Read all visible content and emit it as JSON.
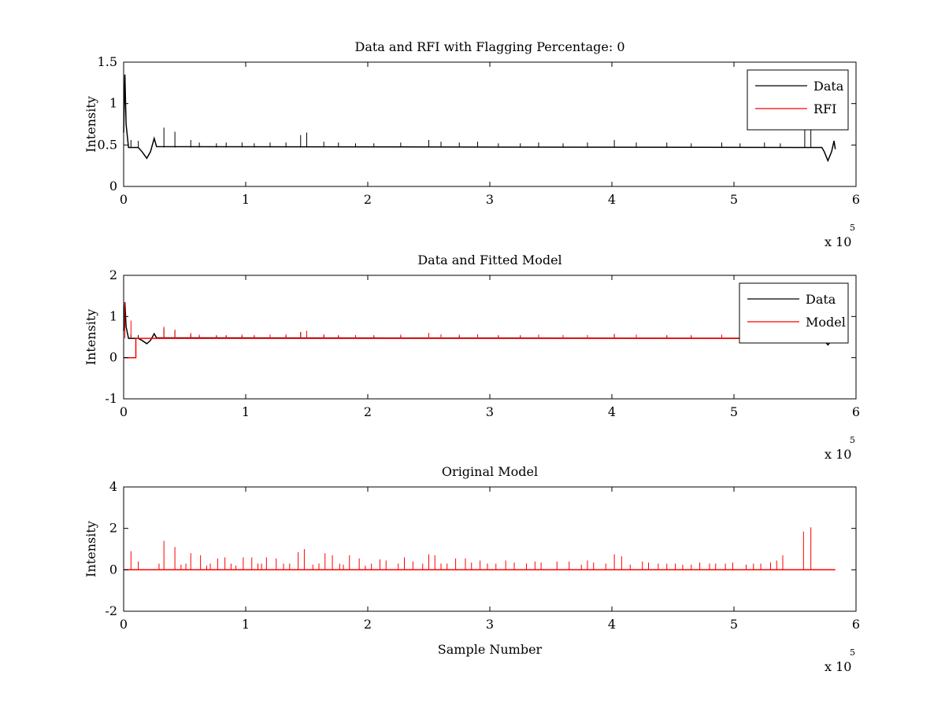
{
  "figure_colors": {
    "data": "#000000",
    "rfi": "#ff0000",
    "model": "#ff0000",
    "background": "#ffffff"
  },
  "chart_data": [
    {
      "type": "line",
      "title": "Data and RFI with Flagging Percentage: 0",
      "xlabel": "",
      "ylabel": "Intensity",
      "xlim": [
        0,
        6
      ],
      "ylim": [
        0,
        1.5
      ],
      "x_ticks": [
        0,
        1,
        2,
        3,
        4,
        5,
        6
      ],
      "y_ticks": [
        0,
        0.5,
        1,
        1.5
      ],
      "x_tick_labels": [
        "0",
        "1",
        "2",
        "3",
        "4",
        "5",
        "6"
      ],
      "y_tick_labels": [
        "0",
        "0.5",
        "1",
        "1.5"
      ],
      "x_multiplier": {
        "base": "x 10",
        "exponent": "5"
      },
      "legend": {
        "position": "top-right",
        "entries": [
          {
            "label": "Data",
            "color": "#000000"
          },
          {
            "label": "RFI",
            "color": "#ff0000"
          }
        ]
      },
      "series": [
        {
          "name": "Data",
          "color": "#000000",
          "baseline": 0.47,
          "points": [
            [
              0,
              0.65
            ],
            [
              0.01,
              1.35
            ],
            [
              0.02,
              0.75
            ],
            [
              0.04,
              0.47
            ],
            [
              0.12,
              0.47
            ],
            [
              0.15,
              0.42
            ],
            [
              0.19,
              0.34
            ],
            [
              0.22,
              0.42
            ],
            [
              0.25,
              0.58
            ],
            [
              0.27,
              0.48
            ],
            [
              5.72,
              0.47
            ],
            [
              5.74,
              0.42
            ],
            [
              5.77,
              0.31
            ],
            [
              5.8,
              0.42
            ],
            [
              5.82,
              0.55
            ],
            [
              5.83,
              0.45
            ]
          ],
          "spikes": [
            [
              0.06,
              0.56
            ],
            [
              0.12,
              0.55
            ],
            [
              0.33,
              0.71
            ],
            [
              0.42,
              0.66
            ],
            [
              0.55,
              0.56
            ],
            [
              0.62,
              0.53
            ],
            [
              0.76,
              0.52
            ],
            [
              0.84,
              0.53
            ],
            [
              0.97,
              0.53
            ],
            [
              1.07,
              0.52
            ],
            [
              1.2,
              0.53
            ],
            [
              1.33,
              0.53
            ],
            [
              1.45,
              0.62
            ],
            [
              1.5,
              0.65
            ],
            [
              1.64,
              0.54
            ],
            [
              1.76,
              0.53
            ],
            [
              1.9,
              0.52
            ],
            [
              2.05,
              0.52
            ],
            [
              2.27,
              0.53
            ],
            [
              2.5,
              0.56
            ],
            [
              2.6,
              0.54
            ],
            [
              2.75,
              0.53
            ],
            [
              2.9,
              0.54
            ],
            [
              3.07,
              0.52
            ],
            [
              3.25,
              0.52
            ],
            [
              3.4,
              0.53
            ],
            [
              3.6,
              0.52
            ],
            [
              3.8,
              0.53
            ],
            [
              4.02,
              0.56
            ],
            [
              4.2,
              0.53
            ],
            [
              4.45,
              0.53
            ],
            [
              4.65,
              0.52
            ],
            [
              4.9,
              0.53
            ],
            [
              5.05,
              0.52
            ],
            [
              5.25,
              0.53
            ],
            [
              5.38,
              0.52
            ],
            [
              5.58,
              0.77
            ],
            [
              5.63,
              0.77
            ]
          ]
        },
        {
          "name": "RFI",
          "color": "#ff0000",
          "points": []
        }
      ]
    },
    {
      "type": "line",
      "title": "Data and Fitted Model",
      "xlabel": "",
      "ylabel": "Intensity",
      "xlim": [
        0,
        6
      ],
      "ylim": [
        -1,
        2
      ],
      "x_ticks": [
        0,
        1,
        2,
        3,
        4,
        5,
        6
      ],
      "y_ticks": [
        -1,
        0,
        1,
        2
      ],
      "x_tick_labels": [
        "0",
        "1",
        "2",
        "3",
        "4",
        "5",
        "6"
      ],
      "y_tick_labels": [
        "-1",
        "0",
        "1",
        "2"
      ],
      "x_multiplier": {
        "base": "x 10",
        "exponent": "5"
      },
      "legend": {
        "position": "top-right",
        "entries": [
          {
            "label": "Data",
            "color": "#000000"
          },
          {
            "label": "Model",
            "color": "#ff0000"
          }
        ]
      },
      "series": [
        {
          "name": "Data",
          "color": "#000000",
          "baseline": 0.47,
          "points": [
            [
              0,
              0.65
            ],
            [
              0.01,
              1.35
            ],
            [
              0.02,
              0.75
            ],
            [
              0.04,
              0.47
            ],
            [
              0.12,
              0.47
            ],
            [
              0.15,
              0.42
            ],
            [
              0.19,
              0.34
            ],
            [
              0.22,
              0.42
            ],
            [
              0.25,
              0.58
            ],
            [
              0.27,
              0.48
            ],
            [
              5.72,
              0.47
            ],
            [
              5.74,
              0.42
            ],
            [
              5.77,
              0.31
            ],
            [
              5.8,
              0.42
            ],
            [
              5.82,
              0.55
            ],
            [
              5.83,
              0.45
            ]
          ],
          "spikes": [
            [
              0.06,
              0.56
            ],
            [
              0.12,
              0.55
            ],
            [
              0.33,
              0.71
            ],
            [
              0.42,
              0.66
            ],
            [
              0.55,
              0.56
            ],
            [
              0.62,
              0.53
            ],
            [
              0.76,
              0.52
            ],
            [
              0.84,
              0.53
            ],
            [
              0.97,
              0.53
            ],
            [
              1.07,
              0.52
            ],
            [
              1.2,
              0.53
            ],
            [
              1.33,
              0.53
            ],
            [
              1.45,
              0.62
            ],
            [
              1.5,
              0.65
            ],
            [
              1.64,
              0.54
            ],
            [
              1.76,
              0.53
            ],
            [
              1.9,
              0.52
            ],
            [
              2.05,
              0.52
            ],
            [
              2.27,
              0.53
            ],
            [
              2.5,
              0.56
            ],
            [
              2.6,
              0.54
            ],
            [
              2.75,
              0.53
            ],
            [
              2.9,
              0.54
            ],
            [
              3.07,
              0.52
            ],
            [
              3.25,
              0.52
            ],
            [
              3.4,
              0.53
            ],
            [
              3.6,
              0.52
            ],
            [
              3.8,
              0.53
            ],
            [
              4.02,
              0.56
            ],
            [
              4.2,
              0.53
            ],
            [
              4.45,
              0.53
            ],
            [
              4.65,
              0.52
            ],
            [
              4.9,
              0.53
            ],
            [
              5.05,
              0.52
            ],
            [
              5.25,
              0.53
            ],
            [
              5.38,
              0.52
            ],
            [
              5.58,
              0.77
            ],
            [
              5.63,
              0.77
            ]
          ]
        },
        {
          "name": "Model",
          "color": "#ff0000",
          "baseline": 0.47,
          "points": [
            [
              0,
              0.0
            ],
            [
              0.1,
              0.0
            ],
            [
              0.1,
              0.47
            ],
            [
              5.83,
              0.47
            ]
          ],
          "spikes": [
            [
              0.01,
              1.35
            ],
            [
              0.06,
              0.9
            ],
            [
              0.33,
              0.75
            ],
            [
              0.42,
              0.68
            ],
            [
              0.55,
              0.6
            ],
            [
              0.62,
              0.56
            ],
            [
              0.76,
              0.55
            ],
            [
              0.84,
              0.55
            ],
            [
              0.97,
              0.56
            ],
            [
              1.07,
              0.55
            ],
            [
              1.2,
              0.56
            ],
            [
              1.33,
              0.57
            ],
            [
              1.45,
              0.62
            ],
            [
              1.5,
              0.65
            ],
            [
              1.64,
              0.57
            ],
            [
              1.76,
              0.55
            ],
            [
              1.9,
              0.55
            ],
            [
              2.05,
              0.55
            ],
            [
              2.27,
              0.56
            ],
            [
              2.5,
              0.6
            ],
            [
              2.6,
              0.57
            ],
            [
              2.75,
              0.56
            ],
            [
              2.9,
              0.57
            ],
            [
              3.07,
              0.55
            ],
            [
              3.25,
              0.55
            ],
            [
              3.4,
              0.56
            ],
            [
              3.6,
              0.55
            ],
            [
              3.8,
              0.55
            ],
            [
              4.02,
              0.58
            ],
            [
              4.2,
              0.56
            ],
            [
              4.45,
              0.55
            ],
            [
              4.65,
              0.55
            ],
            [
              4.9,
              0.56
            ],
            [
              5.05,
              0.55
            ],
            [
              5.25,
              0.55
            ],
            [
              5.38,
              0.55
            ]
          ]
        }
      ]
    },
    {
      "type": "line",
      "title": "Original Model",
      "xlabel": "Sample Number",
      "ylabel": "Intensity",
      "xlim": [
        0,
        6
      ],
      "ylim": [
        -2,
        4
      ],
      "x_ticks": [
        0,
        1,
        2,
        3,
        4,
        5,
        6
      ],
      "y_ticks": [
        -2,
        0,
        2,
        4
      ],
      "x_tick_labels": [
        "0",
        "1",
        "2",
        "3",
        "4",
        "5",
        "6"
      ],
      "y_tick_labels": [
        "-2",
        "0",
        "2",
        "4"
      ],
      "x_multiplier": {
        "base": "x 10",
        "exponent": "5"
      },
      "legend": null,
      "series": [
        {
          "name": "",
          "color": "#ff0000",
          "baseline": 0.0,
          "points": [
            [
              0,
              0.0
            ],
            [
              5.83,
              0.0
            ]
          ],
          "spikes": [
            [
              0.06,
              0.9
            ],
            [
              0.12,
              0.4
            ],
            [
              0.29,
              0.3
            ],
            [
              0.33,
              1.4
            ],
            [
              0.42,
              1.1
            ],
            [
              0.47,
              0.25
            ],
            [
              0.51,
              0.3
            ],
            [
              0.55,
              0.8
            ],
            [
              0.63,
              0.7
            ],
            [
              0.68,
              0.2
            ],
            [
              0.71,
              0.3
            ],
            [
              0.77,
              0.55
            ],
            [
              0.83,
              0.6
            ],
            [
              0.88,
              0.3
            ],
            [
              0.92,
              0.2
            ],
            [
              0.98,
              0.6
            ],
            [
              1.05,
              0.6
            ],
            [
              1.1,
              0.3
            ],
            [
              1.13,
              0.3
            ],
            [
              1.17,
              0.6
            ],
            [
              1.25,
              0.55
            ],
            [
              1.31,
              0.3
            ],
            [
              1.36,
              0.3
            ],
            [
              1.43,
              0.85
            ],
            [
              1.48,
              1.0
            ],
            [
              1.55,
              0.25
            ],
            [
              1.6,
              0.3
            ],
            [
              1.65,
              0.8
            ],
            [
              1.71,
              0.7
            ],
            [
              1.77,
              0.3
            ],
            [
              1.8,
              0.25
            ],
            [
              1.85,
              0.7
            ],
            [
              1.93,
              0.55
            ],
            [
              1.98,
              0.2
            ],
            [
              2.03,
              0.3
            ],
            [
              2.1,
              0.5
            ],
            [
              2.15,
              0.45
            ],
            [
              2.25,
              0.3
            ],
            [
              2.3,
              0.6
            ],
            [
              2.37,
              0.4
            ],
            [
              2.45,
              0.3
            ],
            [
              2.5,
              0.75
            ],
            [
              2.55,
              0.7
            ],
            [
              2.6,
              0.3
            ],
            [
              2.65,
              0.3
            ],
            [
              2.72,
              0.55
            ],
            [
              2.8,
              0.55
            ],
            [
              2.85,
              0.35
            ],
            [
              2.92,
              0.45
            ],
            [
              2.98,
              0.3
            ],
            [
              3.05,
              0.3
            ],
            [
              3.13,
              0.45
            ],
            [
              3.2,
              0.35
            ],
            [
              3.3,
              0.3
            ],
            [
              3.37,
              0.4
            ],
            [
              3.42,
              0.35
            ],
            [
              3.55,
              0.4
            ],
            [
              3.65,
              0.4
            ],
            [
              3.75,
              0.25
            ],
            [
              3.8,
              0.45
            ],
            [
              3.85,
              0.35
            ],
            [
              3.95,
              0.3
            ],
            [
              4.02,
              0.75
            ],
            [
              4.08,
              0.65
            ],
            [
              4.15,
              0.25
            ],
            [
              4.25,
              0.4
            ],
            [
              4.3,
              0.35
            ],
            [
              4.38,
              0.3
            ],
            [
              4.45,
              0.3
            ],
            [
              4.52,
              0.3
            ],
            [
              4.58,
              0.25
            ],
            [
              4.65,
              0.25
            ],
            [
              4.72,
              0.35
            ],
            [
              4.8,
              0.3
            ],
            [
              4.85,
              0.3
            ],
            [
              4.93,
              0.3
            ],
            [
              4.99,
              0.35
            ],
            [
              5.1,
              0.25
            ],
            [
              5.16,
              0.3
            ],
            [
              5.22,
              0.3
            ],
            [
              5.3,
              0.35
            ],
            [
              5.35,
              0.45
            ],
            [
              5.4,
              0.7
            ],
            [
              5.57,
              1.85
            ],
            [
              5.63,
              2.05
            ]
          ]
        }
      ]
    }
  ]
}
